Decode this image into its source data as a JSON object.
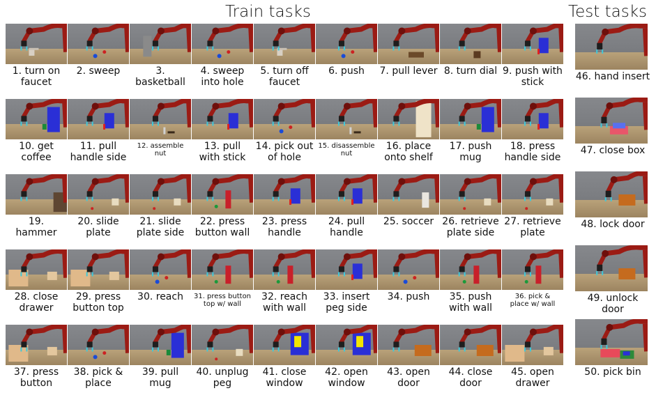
{
  "headings": {
    "train": "Train tasks",
    "test": "Test tasks"
  },
  "train_tasks": [
    {
      "label": "1. turn on\nfaucet",
      "object": "faucet"
    },
    {
      "label": "2. sweep",
      "object": "puck"
    },
    {
      "label": "3. basketball",
      "object": "hoop"
    },
    {
      "label": "4. sweep\ninto hole",
      "object": "puck"
    },
    {
      "label": "5. turn off\nfaucet",
      "object": "faucet"
    },
    {
      "label": "6. push",
      "object": "puck"
    },
    {
      "label": "7. pull lever",
      "object": "lever"
    },
    {
      "label": "8. turn dial",
      "object": "dial"
    },
    {
      "label": "9. push with\nstick",
      "object": "blue-box"
    },
    {
      "label": "10. get\ncoffee",
      "object": "coffee-machine"
    },
    {
      "label": "11. pull\nhandle side",
      "object": "blue-box"
    },
    {
      "label": "12. assemble\nnut",
      "object": "peg"
    },
    {
      "label": "13. pull\nwith stick",
      "object": "blue-box"
    },
    {
      "label": "14. pick out\nof hole",
      "object": "puck"
    },
    {
      "label": "15. disassemble\nnut",
      "object": "peg"
    },
    {
      "label": "16. place\nonto shelf",
      "object": "shelf"
    },
    {
      "label": "17. push\nmug",
      "object": "coffee-machine"
    },
    {
      "label": "18. press\nhandle side",
      "object": "blue-box"
    },
    {
      "label": "19.\nhammer",
      "object": "wood-box"
    },
    {
      "label": "20. slide\nplate",
      "object": "plate"
    },
    {
      "label": "21. slide\nplate side",
      "object": "plate"
    },
    {
      "label": "22. press\nbutton wall",
      "object": "wall"
    },
    {
      "label": "23. press\nhandle",
      "object": "blue-box"
    },
    {
      "label": "24. pull\nhandle",
      "object": "blue-box"
    },
    {
      "label": "25. soccer",
      "object": "goal"
    },
    {
      "label": "26. retrieve\nplate side",
      "object": "plate"
    },
    {
      "label": "27. retrieve\nplate",
      "object": "plate"
    },
    {
      "label": "28. close\ndrawer",
      "object": "drawer"
    },
    {
      "label": "29. press\nbutton top",
      "object": "drawer"
    },
    {
      "label": "30. reach",
      "object": "puck"
    },
    {
      "label": "31. press button\ntop w/ wall",
      "object": "wall"
    },
    {
      "label": "32. reach\nwith wall",
      "object": "wall"
    },
    {
      "label": "33. insert\npeg side",
      "object": "blue-box"
    },
    {
      "label": "34. push",
      "object": "puck"
    },
    {
      "label": "35. push\nwith wall",
      "object": "wall"
    },
    {
      "label": "36. pick &\nplace w/ wall",
      "object": "wall"
    },
    {
      "label": "37. press\nbutton",
      "object": "drawer"
    },
    {
      "label": "38. pick &\nplace",
      "object": "puck"
    },
    {
      "label": "39. pull\nmug",
      "object": "coffee-machine"
    },
    {
      "label": "40. unplug\npeg",
      "object": "plate"
    },
    {
      "label": "41. close\nwindow",
      "object": "window"
    },
    {
      "label": "42. open\nwindow",
      "object": "window"
    },
    {
      "label": "43. open\ndoor",
      "object": "door"
    },
    {
      "label": "44. close\ndoor",
      "object": "door"
    },
    {
      "label": "45. open\ndrawer",
      "object": "drawer"
    }
  ],
  "test_tasks": [
    {
      "label": "46. hand insert",
      "object": "table"
    },
    {
      "label": "47. close box",
      "object": "box"
    },
    {
      "label": "48. lock door",
      "object": "door"
    },
    {
      "label": "49. unlock door",
      "object": "door"
    },
    {
      "label": "50. pick bin",
      "object": "bin"
    }
  ],
  "colors": {
    "robot": "#9b1b14",
    "robot_dark": "#6e0f0b",
    "blue_object": "#2a2fd6",
    "table": "#b59e76",
    "background": "#808286"
  }
}
